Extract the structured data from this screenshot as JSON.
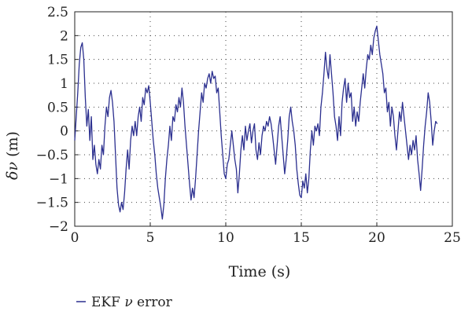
{
  "chart_data": {
    "type": "line",
    "xlabel": "Time (s)",
    "ylabel_symbol": "δν",
    "ylabel_unit": " (m)",
    "xlim": [
      0,
      25
    ],
    "ylim": [
      -2,
      2.5
    ],
    "xticks": [
      0,
      5,
      10,
      15,
      20,
      25
    ],
    "yticks": [
      -2,
      -1.5,
      -1,
      -0.5,
      0,
      0.5,
      1,
      1.5,
      2,
      2.5
    ],
    "grid": true,
    "legend_position": "bottom-left",
    "legend": {
      "prefix": "EKF ",
      "variable": "ν",
      "suffix": " error"
    },
    "series": [
      {
        "name": "EKF ν error",
        "color": "#2b2f8f",
        "points": [
          [
            0,
            -0.2
          ],
          [
            0.1,
            0.3
          ],
          [
            0.2,
            0.8
          ],
          [
            0.3,
            1.4
          ],
          [
            0.4,
            1.75
          ],
          [
            0.5,
            1.85
          ],
          [
            0.6,
            1.5
          ],
          [
            0.7,
            0.7
          ],
          [
            0.8,
            0.1
          ],
          [
            0.9,
            0.45
          ],
          [
            1.0,
            -0.2
          ],
          [
            1.1,
            0.3
          ],
          [
            1.2,
            -0.6
          ],
          [
            1.3,
            -0.3
          ],
          [
            1.4,
            -0.7
          ],
          [
            1.5,
            -0.9
          ],
          [
            1.6,
            -0.6
          ],
          [
            1.7,
            -0.8
          ],
          [
            1.8,
            -0.3
          ],
          [
            1.9,
            -0.5
          ],
          [
            2.0,
            0.1
          ],
          [
            2.1,
            0.5
          ],
          [
            2.2,
            0.3
          ],
          [
            2.3,
            0.7
          ],
          [
            2.4,
            0.85
          ],
          [
            2.5,
            0.6
          ],
          [
            2.6,
            0.2
          ],
          [
            2.7,
            -0.5
          ],
          [
            2.8,
            -1.2
          ],
          [
            2.9,
            -1.55
          ],
          [
            3.0,
            -1.7
          ],
          [
            3.1,
            -1.5
          ],
          [
            3.2,
            -1.65
          ],
          [
            3.3,
            -1.3
          ],
          [
            3.4,
            -0.8
          ],
          [
            3.5,
            -0.4
          ],
          [
            3.6,
            -0.8
          ],
          [
            3.7,
            -0.2
          ],
          [
            3.8,
            0.1
          ],
          [
            3.9,
            -0.1
          ],
          [
            4.0,
            0.2
          ],
          [
            4.1,
            -0.1
          ],
          [
            4.2,
            0.3
          ],
          [
            4.3,
            0.5
          ],
          [
            4.4,
            0.2
          ],
          [
            4.5,
            0.7
          ],
          [
            4.6,
            0.55
          ],
          [
            4.7,
            0.9
          ],
          [
            4.8,
            0.8
          ],
          [
            4.9,
            0.95
          ],
          [
            5.0,
            0.6
          ],
          [
            5.1,
            0.2
          ],
          [
            5.2,
            -0.2
          ],
          [
            5.3,
            -0.5
          ],
          [
            5.4,
            -0.9
          ],
          [
            5.5,
            -1.2
          ],
          [
            5.6,
            -1.4
          ],
          [
            5.7,
            -1.6
          ],
          [
            5.8,
            -1.85
          ],
          [
            5.9,
            -1.55
          ],
          [
            6.0,
            -1.0
          ],
          [
            6.1,
            -0.6
          ],
          [
            6.2,
            -0.3
          ],
          [
            6.3,
            0.1
          ],
          [
            6.4,
            -0.2
          ],
          [
            6.5,
            0.3
          ],
          [
            6.6,
            0.2
          ],
          [
            6.7,
            0.55
          ],
          [
            6.8,
            0.4
          ],
          [
            6.9,
            0.7
          ],
          [
            7.0,
            0.5
          ],
          [
            7.1,
            0.9
          ],
          [
            7.2,
            0.6
          ],
          [
            7.3,
            0.1
          ],
          [
            7.4,
            -0.3
          ],
          [
            7.5,
            -0.7
          ],
          [
            7.6,
            -1.1
          ],
          [
            7.7,
            -1.45
          ],
          [
            7.8,
            -1.2
          ],
          [
            7.9,
            -1.4
          ],
          [
            8.0,
            -1.0
          ],
          [
            8.1,
            -0.5
          ],
          [
            8.2,
            0.0
          ],
          [
            8.3,
            0.4
          ],
          [
            8.4,
            0.8
          ],
          [
            8.5,
            0.6
          ],
          [
            8.6,
            1.0
          ],
          [
            8.7,
            0.9
          ],
          [
            8.8,
            1.1
          ],
          [
            8.9,
            1.2
          ],
          [
            9.0,
            1.0
          ],
          [
            9.1,
            1.25
          ],
          [
            9.2,
            1.1
          ],
          [
            9.3,
            1.15
          ],
          [
            9.4,
            0.8
          ],
          [
            9.5,
            0.9
          ],
          [
            9.6,
            0.4
          ],
          [
            9.7,
            -0.1
          ],
          [
            9.8,
            -0.5
          ],
          [
            9.9,
            -0.9
          ],
          [
            10.0,
            -1.0
          ],
          [
            10.1,
            -0.7
          ],
          [
            10.2,
            -0.6
          ],
          [
            10.3,
            -0.3
          ],
          [
            10.4,
            0.0
          ],
          [
            10.5,
            -0.3
          ],
          [
            10.6,
            -0.6
          ],
          [
            10.7,
            -0.8
          ],
          [
            10.8,
            -1.3
          ],
          [
            10.9,
            -0.9
          ],
          [
            11.0,
            -0.4
          ],
          [
            11.1,
            -0.1
          ],
          [
            11.2,
            -0.4
          ],
          [
            11.3,
            0.1
          ],
          [
            11.4,
            -0.2
          ],
          [
            11.5,
            0.0
          ],
          [
            11.6,
            0.15
          ],
          [
            11.7,
            -0.25
          ],
          [
            11.8,
            0.0
          ],
          [
            11.9,
            0.15
          ],
          [
            12.0,
            -0.4
          ],
          [
            12.1,
            -0.6
          ],
          [
            12.2,
            -0.25
          ],
          [
            12.3,
            -0.5
          ],
          [
            12.4,
            -0.1
          ],
          [
            12.5,
            0.1
          ],
          [
            12.6,
            0.0
          ],
          [
            12.7,
            0.2
          ],
          [
            12.8,
            0.1
          ],
          [
            12.9,
            0.3
          ],
          [
            13.0,
            0.15
          ],
          [
            13.1,
            -0.1
          ],
          [
            13.2,
            -0.4
          ],
          [
            13.3,
            -0.7
          ],
          [
            13.4,
            -0.3
          ],
          [
            13.5,
            0.1
          ],
          [
            13.6,
            0.3
          ],
          [
            13.7,
            -0.1
          ],
          [
            13.8,
            -0.5
          ],
          [
            13.9,
            -0.9
          ],
          [
            14.0,
            -0.6
          ],
          [
            14.1,
            -0.2
          ],
          [
            14.2,
            0.3
          ],
          [
            14.3,
            0.5
          ],
          [
            14.4,
            0.2
          ],
          [
            14.5,
            0.0
          ],
          [
            14.6,
            -0.3
          ],
          [
            14.7,
            -0.8
          ],
          [
            14.8,
            -1.1
          ],
          [
            14.9,
            -1.35
          ],
          [
            15.0,
            -1.4
          ],
          [
            15.1,
            -1.05
          ],
          [
            15.2,
            -1.2
          ],
          [
            15.3,
            -0.9
          ],
          [
            15.4,
            -1.3
          ],
          [
            15.5,
            -1.0
          ],
          [
            15.6,
            -0.4
          ],
          [
            15.7,
            0.0
          ],
          [
            15.8,
            -0.3
          ],
          [
            15.9,
            0.1
          ],
          [
            16.0,
            0.0
          ],
          [
            16.1,
            0.15
          ],
          [
            16.2,
            -0.1
          ],
          [
            16.3,
            0.5
          ],
          [
            16.4,
            0.8
          ],
          [
            16.5,
            1.2
          ],
          [
            16.6,
            1.65
          ],
          [
            16.7,
            1.3
          ],
          [
            16.8,
            1.1
          ],
          [
            16.9,
            1.6
          ],
          [
            17.0,
            1.2
          ],
          [
            17.1,
            0.8
          ],
          [
            17.2,
            0.3
          ],
          [
            17.3,
            0.1
          ],
          [
            17.4,
            -0.2
          ],
          [
            17.5,
            0.3
          ],
          [
            17.6,
            -0.1
          ],
          [
            17.7,
            0.6
          ],
          [
            17.8,
            0.9
          ],
          [
            17.9,
            1.1
          ],
          [
            18.0,
            0.6
          ],
          [
            18.1,
            1.0
          ],
          [
            18.2,
            0.7
          ],
          [
            18.3,
            0.8
          ],
          [
            18.4,
            0.2
          ],
          [
            18.5,
            0.5
          ],
          [
            18.6,
            0.1
          ],
          [
            18.7,
            0.4
          ],
          [
            18.8,
            0.2
          ],
          [
            18.9,
            0.6
          ],
          [
            19.0,
            0.9
          ],
          [
            19.1,
            1.2
          ],
          [
            19.2,
            0.9
          ],
          [
            19.3,
            1.3
          ],
          [
            19.4,
            1.6
          ],
          [
            19.5,
            1.5
          ],
          [
            19.6,
            1.8
          ],
          [
            19.7,
            1.6
          ],
          [
            19.8,
            1.95
          ],
          [
            19.9,
            2.1
          ],
          [
            20.0,
            2.2
          ],
          [
            20.1,
            1.9
          ],
          [
            20.2,
            1.6
          ],
          [
            20.3,
            1.4
          ],
          [
            20.4,
            1.2
          ],
          [
            20.5,
            0.8
          ],
          [
            20.6,
            0.9
          ],
          [
            20.7,
            0.4
          ],
          [
            20.8,
            0.6
          ],
          [
            20.9,
            0.1
          ],
          [
            21.0,
            0.5
          ],
          [
            21.1,
            0.3
          ],
          [
            21.2,
            -0.1
          ],
          [
            21.3,
            -0.4
          ],
          [
            21.4,
            0.0
          ],
          [
            21.5,
            0.4
          ],
          [
            21.6,
            0.2
          ],
          [
            21.7,
            0.6
          ],
          [
            21.8,
            0.3
          ],
          [
            21.9,
            0.0
          ],
          [
            22.0,
            -0.3
          ],
          [
            22.1,
            -0.6
          ],
          [
            22.2,
            -0.3
          ],
          [
            22.3,
            -0.5
          ],
          [
            22.4,
            -0.2
          ],
          [
            22.5,
            -0.4
          ],
          [
            22.6,
            -0.1
          ],
          [
            22.7,
            -0.6
          ],
          [
            22.8,
            -0.9
          ],
          [
            22.9,
            -1.25
          ],
          [
            23.0,
            -0.8
          ],
          [
            23.1,
            -0.3
          ],
          [
            23.2,
            0.1
          ],
          [
            23.3,
            0.4
          ],
          [
            23.4,
            0.8
          ],
          [
            23.5,
            0.6
          ],
          [
            23.6,
            0.2
          ],
          [
            23.7,
            -0.3
          ],
          [
            23.8,
            0.0
          ],
          [
            23.9,
            0.2
          ],
          [
            24.0,
            0.15
          ]
        ]
      }
    ]
  }
}
